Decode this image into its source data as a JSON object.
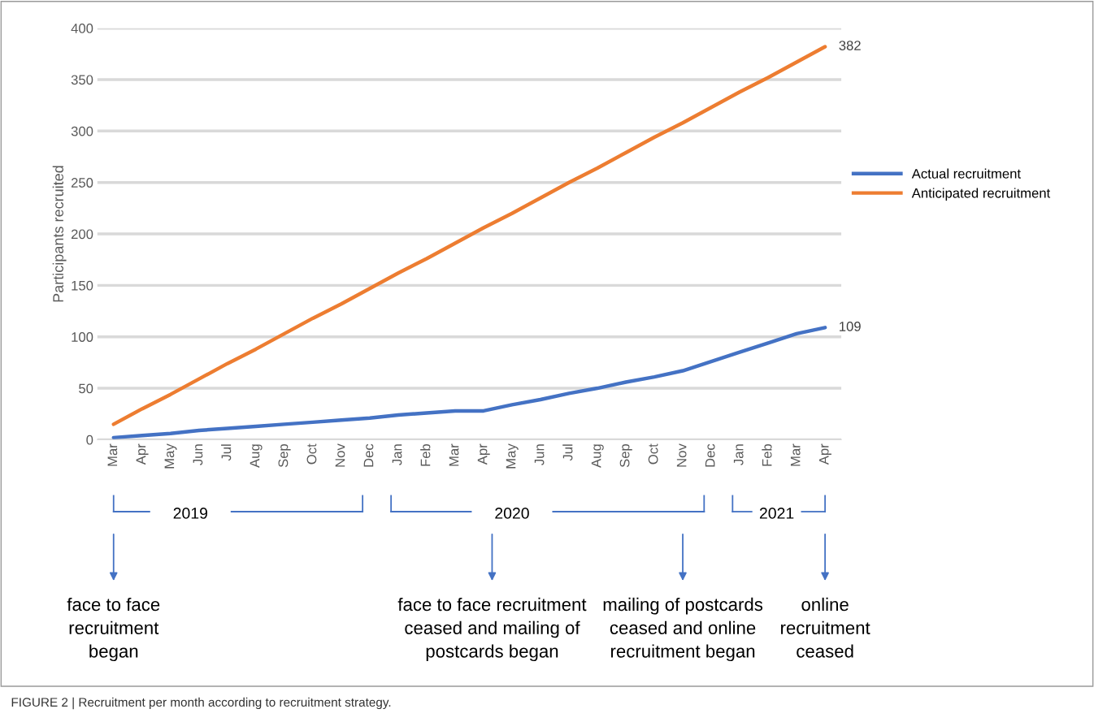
{
  "chart_data": {
    "type": "line",
    "ylabel": "Participants recruited",
    "categories": [
      "Mar",
      "Apr",
      "May",
      "Jun",
      "Jul",
      "Aug",
      "Sep",
      "Oct",
      "Nov",
      "Dec",
      "Jan",
      "Feb",
      "Mar",
      "Apr",
      "May",
      "Jun",
      "Jul",
      "Aug",
      "Sep",
      "Oct",
      "Nov",
      "Dec",
      "Jan",
      "Feb",
      "Mar",
      "Apr"
    ],
    "series": [
      {
        "name": "Actual recruitment",
        "color": "#4472c4",
        "values": [
          2,
          4,
          6,
          9,
          11,
          13,
          15,
          17,
          19,
          21,
          24,
          26,
          28,
          28,
          34,
          39,
          45,
          50,
          56,
          61,
          67,
          76,
          85,
          94,
          103,
          109
        ],
        "value_labels": [
          null,
          null,
          null,
          null,
          null,
          null,
          null,
          null,
          null,
          null,
          null,
          null,
          null,
          null,
          null,
          null,
          null,
          null,
          null,
          null,
          null,
          null,
          null,
          null,
          null,
          "109"
        ]
      },
      {
        "name": "Anticipated recruitment",
        "color": "#ed7d31",
        "values": [
          15,
          30,
          44,
          59,
          74,
          88,
          103,
          118,
          132,
          147,
          162,
          176,
          191,
          206,
          220,
          235,
          250,
          264,
          279,
          294,
          308,
          323,
          338,
          352,
          367,
          382
        ],
        "value_labels": [
          null,
          null,
          null,
          null,
          null,
          null,
          null,
          null,
          null,
          null,
          null,
          null,
          null,
          null,
          null,
          null,
          null,
          null,
          null,
          null,
          null,
          null,
          null,
          null,
          null,
          "382"
        ]
      }
    ],
    "ylim": [
      0,
      400
    ],
    "yticks": [
      0,
      50,
      100,
      150,
      200,
      250,
      300,
      350,
      400
    ],
    "grid": "y",
    "legend": "right",
    "marker": "none",
    "line_style": "solid",
    "annotations": [
      "2019",
      "2020",
      "2021",
      "face to face\nrecruitment\nbegan",
      "face to face recruitment\nceased and mailing of\npostcards began",
      "mailing of postcards\nceased and online\nrecruitment began",
      "online\nrecruitment\nceased",
      "FIGURE 2 | Recruitment per month according to recruitment strategy."
    ]
  }
}
